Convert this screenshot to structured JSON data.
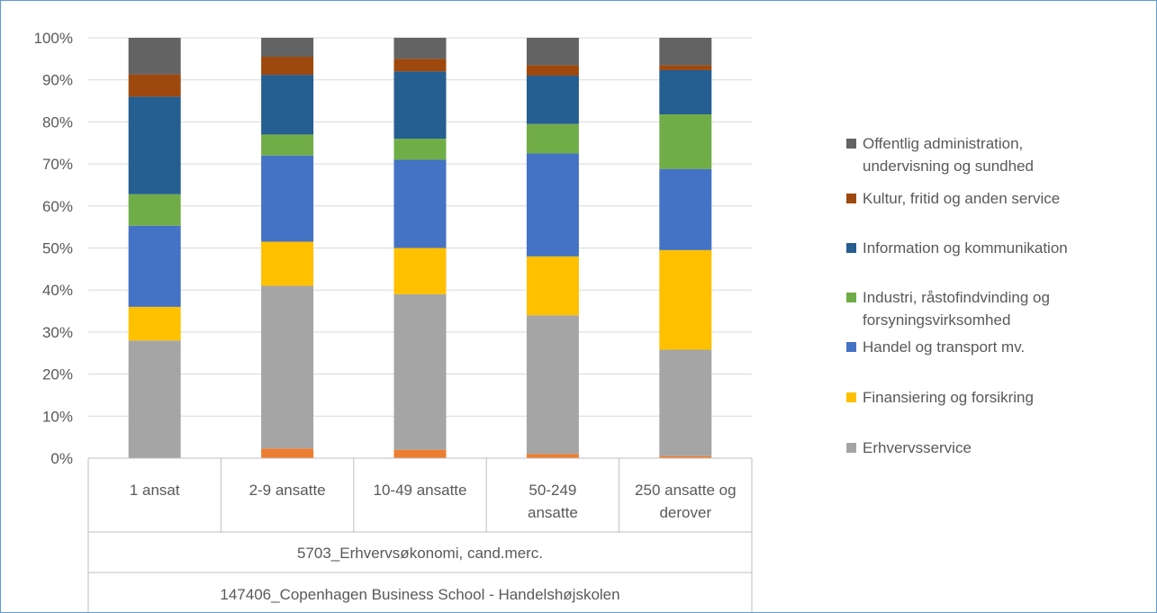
{
  "chart_data": {
    "type": "bar",
    "stacked": true,
    "y_ticks": [
      "0%",
      "10%",
      "20%",
      "30%",
      "40%",
      "50%",
      "60%",
      "70%",
      "80%",
      "90%",
      "100%"
    ],
    "ylim": [
      0,
      100
    ],
    "categories": [
      [
        "1 ansat"
      ],
      [
        "2-9 ansatte"
      ],
      [
        "10-49 ansatte"
      ],
      [
        "50-249",
        "ansatte"
      ],
      [
        "250 ansatte og",
        "derover"
      ]
    ],
    "group_labels": [
      "5703_Erhvervsøkonomi, cand.merc.",
      "147406_Copenhagen Business School - Handelshøjskolen"
    ],
    "legend_position": "right",
    "series": [
      {
        "name": "",
        "color": "#ed7d31",
        "values": [
          0,
          2.3,
          2.0,
          1.0,
          0.5
        ]
      },
      {
        "name": "Erhvervsservice",
        "color": "#a5a5a5",
        "values": [
          28.0,
          38.7,
          37.0,
          33.0,
          25.3
        ]
      },
      {
        "name": "Finansiering og forsikring",
        "color": "#ffc000",
        "values": [
          8.0,
          10.5,
          11.0,
          14.0,
          23.7
        ]
      },
      {
        "name": "Handel og transport mv.",
        "color": "#4472c4",
        "values": [
          19.3,
          20.5,
          21.0,
          24.5,
          19.3
        ]
      },
      {
        "name": "Industri, råstofindvinding og forsyningsvirksomhed",
        "color": "#70ad47",
        "values": [
          7.5,
          5.0,
          5.0,
          7.0,
          13.0
        ]
      },
      {
        "name": "Information og kommunikation",
        "color": "#255e91",
        "values": [
          23.2,
          14.2,
          16.0,
          11.5,
          10.5
        ]
      },
      {
        "name": "Kultur, fritid og anden service",
        "color": "#9e480e",
        "values": [
          5.3,
          4.3,
          3.0,
          2.5,
          1.2
        ]
      },
      {
        "name": "Offentlig administration, undervisning og sundhed",
        "color": "#636363",
        "values": [
          8.7,
          4.5,
          5.0,
          6.5,
          6.5
        ]
      }
    ],
    "legend": [
      {
        "lines": [
          "Offentlig administration,",
          "undervisning og sundhed"
        ],
        "color": "#636363"
      },
      {
        "lines": [
          "Kultur, fritid og anden service"
        ],
        "color": "#9e480e"
      },
      {
        "lines": [
          "Information og kommunikation"
        ],
        "color": "#255e91"
      },
      {
        "lines": [
          "Industri, råstofindvinding og",
          "forsyningsvirksomhed"
        ],
        "color": "#70ad47"
      },
      {
        "lines": [
          "Handel og transport mv."
        ],
        "color": "#4472c4"
      },
      {
        "lines": [
          "Finansiering og forsikring"
        ],
        "color": "#ffc000"
      },
      {
        "lines": [
          "Erhvervsservice"
        ],
        "color": "#a5a5a5"
      }
    ]
  }
}
